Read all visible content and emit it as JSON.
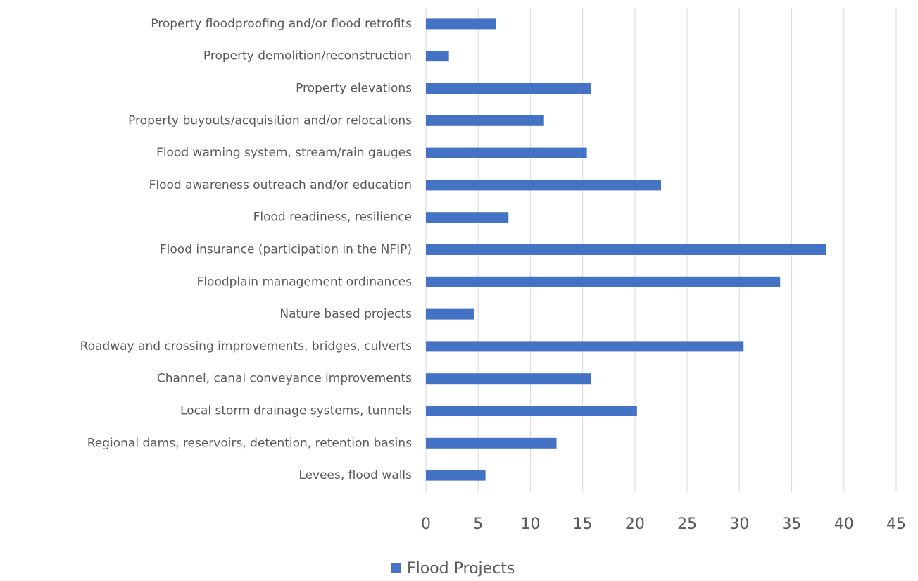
{
  "chart_data": {
    "type": "barh",
    "categories": [
      "Property floodproofing and/or flood retrofits",
      "Property demolition/reconstruction",
      "Property elevations",
      "Property buyouts/acquisition and/or relocations",
      "Flood warning system, stream/rain gauges",
      "Flood awareness outreach and/or education",
      "Flood readiness, resilience",
      "Flood insurance (participation in the NFIP)",
      "Floodplain management ordinances",
      "Nature based projects",
      "Roadway and crossing improvements, bridges, culverts",
      "Channel, canal conveyance improvements",
      "Local storm drainage systems, tunnels",
      "Regional dams, reservoirs, detention, retention basins",
      "Levees, flood walls"
    ],
    "series": [
      {
        "name": "Flood Projects",
        "color": "#4472c4",
        "values": [
          6.7,
          2.2,
          15.8,
          11.3,
          15.4,
          22.5,
          7.9,
          38.3,
          33.9,
          4.6,
          30.4,
          15.8,
          20.2,
          12.5,
          5.7
        ]
      }
    ],
    "xlim": [
      0,
      45
    ],
    "xticks": [
      0,
      5,
      10,
      15,
      20,
      25,
      30,
      35,
      40,
      45
    ],
    "grid": true,
    "legend": "bottom"
  }
}
